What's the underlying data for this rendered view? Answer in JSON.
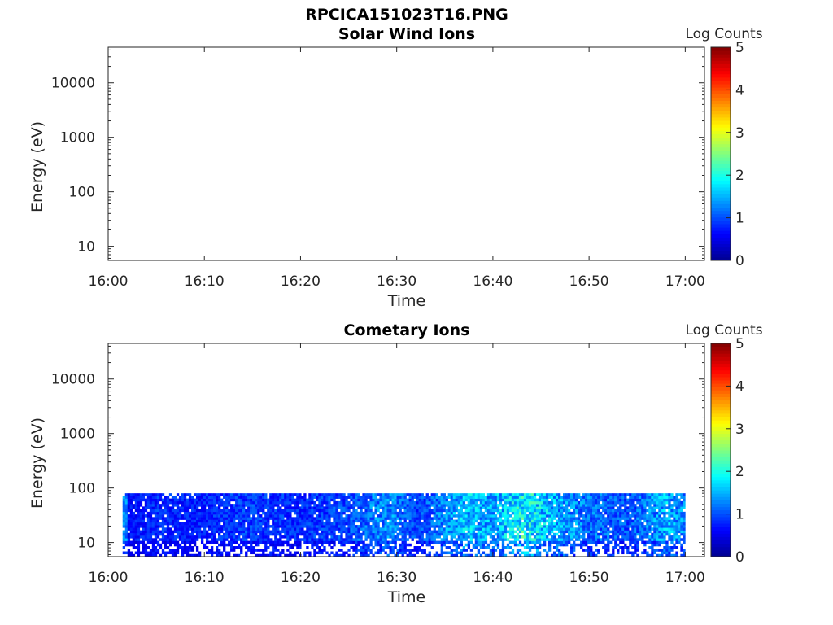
{
  "figure": {
    "filename": "RPCICA151023T16.PNG"
  },
  "colors": {
    "colormap": [
      "#00008f",
      "#0000ff",
      "#0080ff",
      "#00ffff",
      "#80ff80",
      "#ffff00",
      "#ff8000",
      "#ff0000",
      "#800000"
    ],
    "axes": "#262626"
  },
  "chart_data": [
    {
      "type": "heatmap",
      "title": "Solar Wind Ions",
      "xlabel": "Time",
      "ylabel": "Energy (eV)",
      "x_ticks": [
        "16:00",
        "16:10",
        "16:20",
        "16:30",
        "16:40",
        "16:50",
        "17:00"
      ],
      "y_ticks": [
        "10",
        "100",
        "1000",
        "10000"
      ],
      "y_scale": "log",
      "ylim": [
        5.5,
        45000
      ],
      "xlim": [
        "16:00",
        "17:02"
      ],
      "colorbar": {
        "label": "Log Counts",
        "range": [
          0,
          5
        ],
        "ticks": [
          "0",
          "1",
          "2",
          "3",
          "4",
          "5"
        ]
      },
      "data_present": false,
      "data_time_range": [],
      "data_energy_range": [],
      "activity_profile": []
    },
    {
      "type": "heatmap",
      "title": "Cometary Ions",
      "xlabel": "Time",
      "ylabel": "Energy (eV)",
      "x_ticks": [
        "16:00",
        "16:10",
        "16:20",
        "16:30",
        "16:40",
        "16:50",
        "17:00"
      ],
      "y_ticks": [
        "10",
        "100",
        "1000",
        "10000"
      ],
      "y_scale": "log",
      "ylim": [
        5.5,
        45000
      ],
      "xlim": [
        "16:00",
        "17:02"
      ],
      "colorbar": {
        "label": "Log Counts",
        "range": [
          0,
          5
        ],
        "ticks": [
          "0",
          "1",
          "2",
          "3",
          "4",
          "5"
        ]
      },
      "data_present": true,
      "data_time_range": [
        "16:01:30",
        "17:00:00"
      ],
      "data_energy_range": [
        5.5,
        80
      ],
      "activity_profile": [
        {
          "time": "16:02",
          "log_counts": 0.8
        },
        {
          "time": "16:05",
          "log_counts": 1.0
        },
        {
          "time": "16:09",
          "log_counts": 0.9
        },
        {
          "time": "16:14",
          "log_counts": 1.1
        },
        {
          "time": "16:20",
          "log_counts": 1.0
        },
        {
          "time": "16:25",
          "log_counts": 1.2
        },
        {
          "time": "16:29",
          "log_counts": 1.6
        },
        {
          "time": "16:32",
          "log_counts": 1.1
        },
        {
          "time": "16:37",
          "log_counts": 1.9
        },
        {
          "time": "16:40",
          "log_counts": 1.7
        },
        {
          "time": "16:43",
          "log_counts": 2.3
        },
        {
          "time": "16:46",
          "log_counts": 1.8
        },
        {
          "time": "16:50",
          "log_counts": 1.4
        },
        {
          "time": "16:54",
          "log_counts": 1.2
        },
        {
          "time": "16:58",
          "log_counts": 1.8
        },
        {
          "time": "17:00",
          "log_counts": 1.5
        }
      ]
    }
  ]
}
